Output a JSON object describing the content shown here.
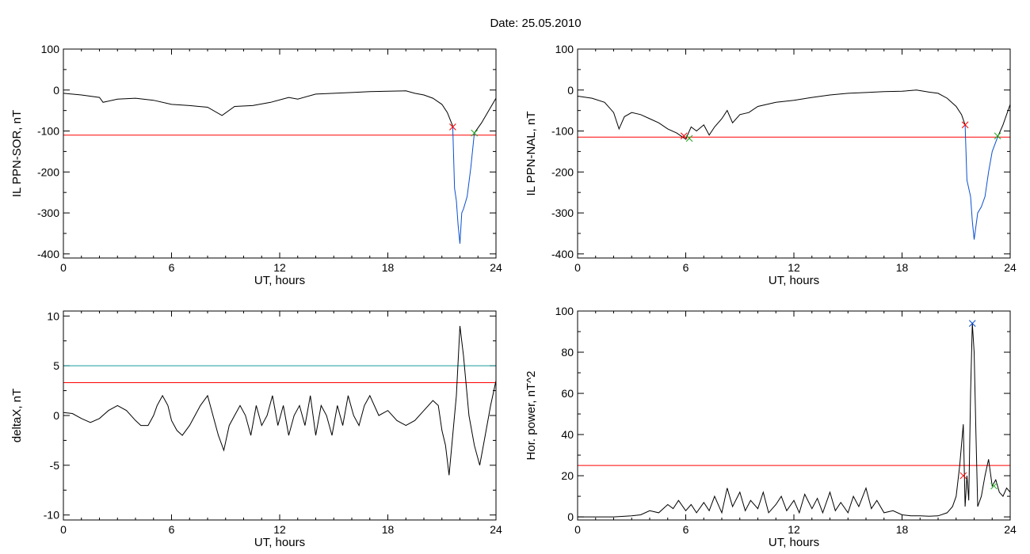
{
  "figure": {
    "title": "Date:  25.05.2010"
  },
  "chart_data": [
    {
      "id": "sor",
      "type": "line",
      "xlabel": "UT, hours",
      "ylabel": "IL PPN-SOR, nT",
      "xlim": [
        0,
        24
      ],
      "ylim": [
        -410,
        100
      ],
      "xticks": [
        0,
        6,
        12,
        18,
        24
      ],
      "yticks": [
        100,
        0,
        -100,
        -200,
        -300,
        -400
      ],
      "hlines": [
        {
          "y": -110,
          "color": "#ff0000"
        }
      ],
      "series": [
        {
          "color": "#000000",
          "x": [
            0,
            1,
            2,
            2.2,
            3,
            4,
            5,
            6,
            7,
            8,
            8.8,
            9.5,
            10.5,
            11.5,
            12.5,
            13,
            14,
            15,
            16,
            17,
            18,
            19,
            19.5,
            20,
            20.5,
            21,
            21.3,
            21.6
          ],
          "y": [
            -8,
            -12,
            -18,
            -30,
            -22,
            -20,
            -25,
            -35,
            -38,
            -42,
            -62,
            -40,
            -38,
            -30,
            -18,
            -22,
            -10,
            -8,
            -6,
            -4,
            -3,
            -2,
            -8,
            -12,
            -20,
            -35,
            -55,
            -88
          ]
        },
        {
          "color": "#0a4fd0",
          "x": [
            21.6,
            21.7,
            21.8,
            21.9,
            22.0,
            22.1,
            22.2,
            22.4,
            22.6,
            22.8
          ],
          "y": [
            -88,
            -240,
            -270,
            -330,
            -375,
            -300,
            -290,
            -260,
            -190,
            -105
          ]
        },
        {
          "color": "#000000",
          "x": [
            22.8,
            23.2,
            23.6,
            24
          ],
          "y": [
            -105,
            -80,
            -50,
            -20
          ]
        }
      ],
      "markers": [
        {
          "x": 21.6,
          "y": -90,
          "color": "#ff0000"
        },
        {
          "x": 22.8,
          "y": -105,
          "color": "#22aa22"
        }
      ]
    },
    {
      "id": "nal",
      "type": "line",
      "xlabel": "UT, hours",
      "ylabel": "IL PPN-NAL, nT",
      "xlim": [
        0,
        24
      ],
      "ylim": [
        -410,
        100
      ],
      "xticks": [
        0,
        6,
        12,
        18,
        24
      ],
      "yticks": [
        100,
        0,
        -100,
        -200,
        -300,
        -400
      ],
      "hlines": [
        {
          "y": -115,
          "color": "#ff0000"
        }
      ],
      "series": [
        {
          "color": "#000000",
          "x": [
            0,
            0.8,
            1.5,
            2,
            2.3,
            2.6,
            3,
            3.5,
            4,
            4.5,
            5,
            5.5,
            6,
            6.3,
            6.6,
            7,
            7.3,
            7.6,
            8,
            8.3,
            8.6,
            9,
            9.5,
            10,
            11,
            12,
            13,
            14,
            15,
            16,
            17,
            18,
            18.8,
            19.5,
            20,
            20.5,
            21,
            21.3,
            21.5
          ],
          "y": [
            -15,
            -20,
            -30,
            -55,
            -95,
            -65,
            -55,
            -60,
            -70,
            -80,
            -95,
            -105,
            -120,
            -90,
            -100,
            -85,
            -110,
            -90,
            -70,
            -50,
            -80,
            -60,
            -55,
            -40,
            -30,
            -25,
            -18,
            -12,
            -8,
            -6,
            -4,
            -3,
            0,
            -5,
            -8,
            -20,
            -40,
            -60,
            -85
          ]
        },
        {
          "color": "#0a4fd0",
          "x": [
            21.5,
            21.6,
            21.8,
            21.9,
            22.0,
            22.2,
            22.4,
            22.6,
            22.8,
            23.0,
            23.3
          ],
          "y": [
            -85,
            -220,
            -260,
            -320,
            -365,
            -300,
            -285,
            -260,
            -200,
            -150,
            -115
          ]
        },
        {
          "color": "#000000",
          "x": [
            23.3,
            23.6,
            24
          ],
          "y": [
            -115,
            -85,
            -35
          ]
        }
      ],
      "markers": [
        {
          "x": 21.5,
          "y": -85,
          "color": "#ff0000"
        },
        {
          "x": 6.2,
          "y": -118,
          "color": "#22aa22"
        },
        {
          "x": 5.9,
          "y": -112,
          "color": "#ff0000"
        },
        {
          "x": 23.3,
          "y": -112,
          "color": "#22aa22"
        }
      ]
    },
    {
      "id": "deltax",
      "type": "line",
      "xlabel": "UT, hours",
      "ylabel": "deltaX, nT",
      "xlim": [
        0,
        24
      ],
      "ylim": [
        -10.5,
        10.5
      ],
      "xticks": [
        0,
        6,
        12,
        18,
        24
      ],
      "yticks": [
        10,
        5,
        0,
        -5,
        -10
      ],
      "hlines": [
        {
          "y": 5,
          "color": "#1a9a9a"
        },
        {
          "y": 3.3,
          "color": "#ff0000"
        }
      ],
      "series": [
        {
          "color": "#000000",
          "x": [
            0,
            0.5,
            1,
            1.5,
            2,
            2.5,
            3,
            3.5,
            4,
            4.3,
            4.7,
            5,
            5.2,
            5.5,
            5.8,
            6,
            6.3,
            6.6,
            7,
            7.3,
            7.6,
            8,
            8.3,
            8.6,
            8.9,
            9.2,
            9.5,
            9.8,
            10.1,
            10.4,
            10.7,
            11,
            11.3,
            11.6,
            11.9,
            12.2,
            12.5,
            12.8,
            13.1,
            13.4,
            13.7,
            14,
            14.3,
            14.6,
            14.9,
            15.2,
            15.5,
            15.8,
            16.1,
            16.4,
            16.7,
            17,
            17.5,
            18,
            18.5,
            19,
            19.5,
            20,
            20.5,
            20.8,
            21,
            21.2,
            21.4,
            21.6,
            21.8,
            22,
            22.2,
            22.5,
            22.8,
            23.1,
            23.4,
            23.7,
            24
          ],
          "y": [
            0.3,
            0.2,
            -0.3,
            -0.7,
            -0.3,
            0.5,
            1,
            0.5,
            -0.5,
            -1,
            -1,
            0,
            1,
            2,
            1,
            -0.5,
            -1.5,
            -2,
            -1,
            0,
            1,
            2,
            0,
            -2,
            -3.5,
            -1,
            0,
            1,
            0,
            -2,
            1,
            -1,
            0,
            2,
            -1,
            1,
            -2,
            0,
            1,
            -1,
            2,
            -2,
            1,
            0,
            -2,
            1,
            -1,
            2,
            0,
            -1,
            1,
            2,
            0,
            0.5,
            -0.5,
            -1,
            -0.5,
            0.5,
            1.5,
            1,
            -1.5,
            -3,
            -6,
            -2,
            2,
            9,
            6,
            0,
            -3,
            -5,
            -2,
            1,
            3.5
          ]
        }
      ],
      "markers": []
    },
    {
      "id": "power",
      "type": "line",
      "xlabel": "UT, hours",
      "ylabel": "Hor. power, nT^2",
      "xlim": [
        0,
        24
      ],
      "ylim": [
        -1.5,
        100
      ],
      "xticks": [
        0,
        6,
        12,
        18,
        24
      ],
      "yticks": [
        100,
        80,
        60,
        40,
        20,
        0
      ],
      "hlines": [
        {
          "y": 25,
          "color": "#ff0000"
        }
      ],
      "series": [
        {
          "color": "#000000",
          "x": [
            0,
            1,
            2,
            3,
            3.5,
            4,
            4.5,
            5,
            5.3,
            5.6,
            6,
            6.3,
            6.6,
            7,
            7.3,
            7.6,
            8,
            8.3,
            8.6,
            9,
            9.3,
            9.6,
            10,
            10.3,
            10.6,
            11,
            11.3,
            11.6,
            12,
            12.3,
            12.6,
            13,
            13.3,
            13.6,
            14,
            14.3,
            14.6,
            15,
            15.3,
            15.6,
            16,
            16.3,
            16.6,
            17,
            17.5,
            18,
            18.5,
            19,
            19.5,
            20,
            20.5,
            20.8,
            21,
            21.2,
            21.4,
            21.5,
            21.6,
            21.7,
            21.8,
            21.9,
            22.0,
            22.1,
            22.2,
            22.4,
            22.6,
            22.8,
            23.0,
            23.2,
            23.4,
            23.6,
            23.8,
            24
          ],
          "y": [
            0,
            0,
            0,
            0.5,
            1,
            3,
            2,
            6,
            4,
            8,
            3,
            6,
            2,
            7,
            3,
            10,
            2,
            14,
            5,
            12,
            3,
            8,
            4,
            12,
            2,
            6,
            10,
            3,
            8,
            2,
            11,
            4,
            9,
            2,
            12,
            3,
            7,
            2,
            10,
            5,
            14,
            4,
            8,
            2,
            3,
            1,
            0.5,
            0.5,
            0.3,
            0.5,
            2,
            5,
            10,
            25,
            45,
            5,
            20,
            8,
            60,
            94,
            80,
            40,
            5,
            10,
            20,
            28,
            15,
            18,
            12,
            10,
            14,
            12
          ]
        }
      ],
      "markers": [
        {
          "x": 21.9,
          "y": 94,
          "color": "#0a4fd0"
        },
        {
          "x": 21.4,
          "y": 20,
          "color": "#ff0000"
        },
        {
          "x": 23.1,
          "y": 15,
          "color": "#22aa22"
        }
      ]
    }
  ]
}
